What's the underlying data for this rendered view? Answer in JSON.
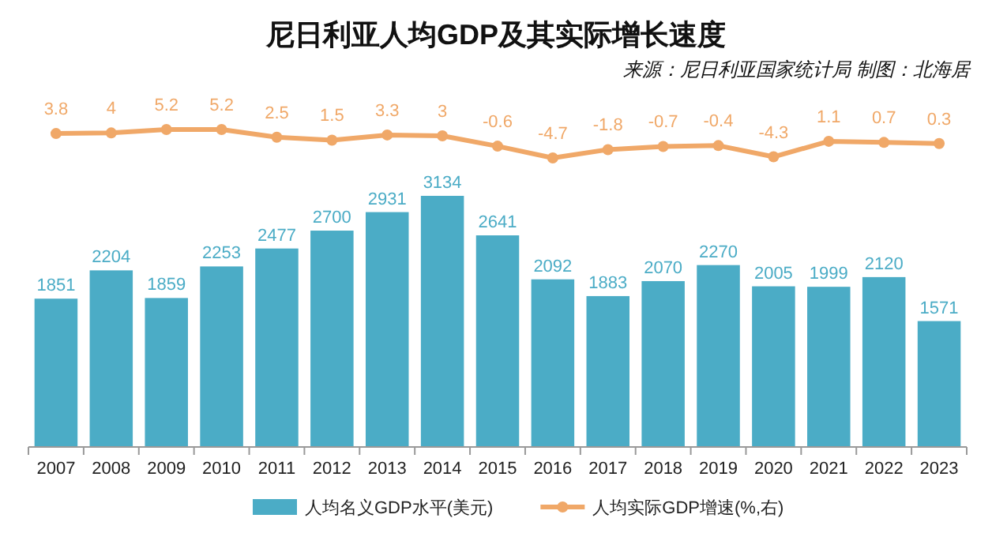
{
  "chart_data": [
    {
      "type": "line",
      "title": "尼日利亚人均GDP及其实际增长速度",
      "annotations": [
        "来源：尼日利亚国家统计局 制图：北海居"
      ],
      "categories": [
        "2007",
        "2008",
        "2009",
        "2010",
        "2011",
        "2012",
        "2013",
        "2014",
        "2015",
        "2016",
        "2017",
        "2018",
        "2019",
        "2020",
        "2021",
        "2022",
        "2023"
      ],
      "series": [
        {
          "name": "人均实际GDP增速(%,右)",
          "color": "#f0a868",
          "values": [
            3.8,
            4.0,
            5.2,
            5.2,
            2.5,
            1.5,
            3.3,
            3.0,
            -0.6,
            -4.7,
            -1.8,
            -0.7,
            -0.4,
            -4.3,
            1.1,
            0.7,
            0.3
          ]
        }
      ],
      "marker": "circle",
      "data_labels": true,
      "legend": "bottom",
      "tick_labels": false
    },
    {
      "type": "bar",
      "categories": [
        "2007",
        "2008",
        "2009",
        "2010",
        "2011",
        "2012",
        "2013",
        "2014",
        "2015",
        "2016",
        "2017",
        "2018",
        "2019",
        "2020",
        "2021",
        "2022",
        "2023"
      ],
      "series": [
        {
          "name": "人均名义GDP水平(美元)",
          "color": "#4bacc6",
          "values": [
            1851,
            2204,
            1859,
            2253,
            2477,
            2700,
            2931,
            3134,
            2641,
            2092,
            1883,
            2070,
            2270,
            2005,
            1999,
            2120,
            1571
          ]
        }
      ],
      "data_labels": true,
      "legend": "bottom"
    }
  ]
}
